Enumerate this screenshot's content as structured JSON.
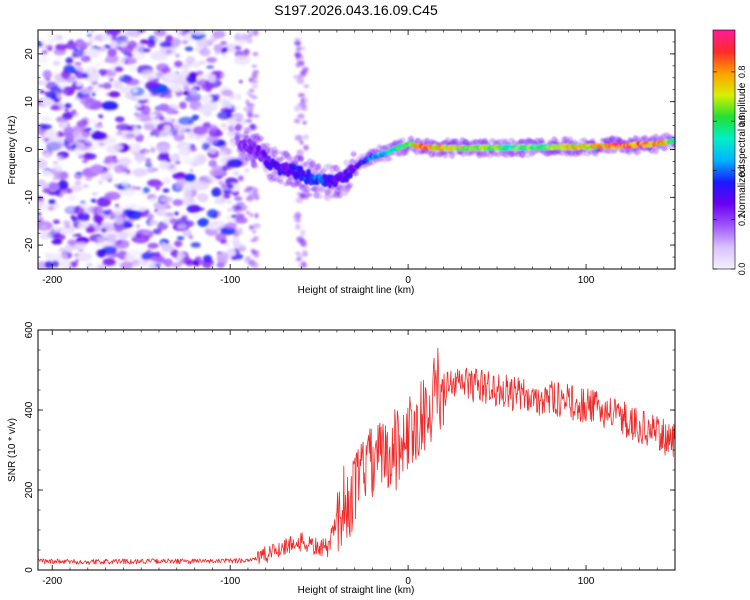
{
  "title": "S197.2026.043.16.09.C45",
  "colors": {
    "snr_line": "#ee2a2a",
    "axis": "#000000",
    "background": "#ffffff"
  },
  "chart_data": [
    {
      "type": "heatmap",
      "name": "spectrogram",
      "xlabel": "Height of straight line (km)",
      "ylabel": "Frequency (Hz)",
      "xlim": [
        -208,
        150
      ],
      "ylim": [
        -25,
        25
      ],
      "x_ticks": [
        -200,
        -100,
        0,
        100
      ],
      "y_ticks": [
        -20,
        -10,
        0,
        10,
        20
      ],
      "colorbar": {
        "label": "Normalized spectral amplitude",
        "range": [
          0,
          0.97
        ],
        "ticks": [
          0.0,
          0.2,
          0.4,
          0.6,
          0.8
        ],
        "tick_labels": [
          "0.0",
          "0.2",
          "0.4",
          "0.6",
          "0.8"
        ],
        "colormap": [
          "#f5f0ff",
          "#d9c2ff",
          "#9f55ff",
          "#6a00f0",
          "#1a1aff",
          "#00b4ff",
          "#00f0c8",
          "#22e030",
          "#d8f000",
          "#ffa000",
          "#ff2a2a",
          "#ff1a9a"
        ]
      },
      "noise_region": {
        "x_range": [
          -208,
          -93
        ],
        "amplitude_range": [
          0.0,
          0.12
        ]
      },
      "signal_ridge": {
        "height_km": [
          -96,
          -90,
          -85,
          -80,
          -75,
          -70,
          -65,
          -60,
          -55,
          -50,
          -45,
          -40,
          -35,
          -30,
          -25,
          -20,
          -15,
          -10,
          -5,
          0,
          5,
          10,
          20,
          40,
          60,
          80,
          100,
          120,
          140,
          150
        ],
        "frequency_hz": [
          1.5,
          1.0,
          -0.5,
          -2.0,
          -3.5,
          -4.0,
          -4.5,
          -5.0,
          -6.0,
          -6.5,
          -7.0,
          -6.5,
          -5.5,
          -4.0,
          -2.5,
          -1.5,
          -1.0,
          -0.5,
          0.5,
          1.0,
          0.8,
          0.5,
          0.3,
          0.3,
          0.4,
          0.5,
          0.6,
          0.8,
          1.2,
          1.8
        ],
        "amplitude": [
          0.2,
          0.25,
          0.25,
          0.28,
          0.35,
          0.3,
          0.32,
          0.35,
          0.38,
          0.4,
          0.35,
          0.3,
          0.3,
          0.28,
          0.35,
          0.45,
          0.5,
          0.55,
          0.6,
          0.7,
          0.8,
          0.85,
          0.75,
          0.7,
          0.65,
          0.7,
          0.8,
          0.9,
          0.85,
          0.6
        ]
      }
    },
    {
      "type": "line",
      "name": "snr",
      "xlabel": "Height of straight line (km)",
      "ylabel": "SNR (10 * v/v)",
      "xlim": [
        -208,
        150
      ],
      "ylim": [
        0,
        600
      ],
      "x_ticks": [
        -200,
        -100,
        0,
        100
      ],
      "y_ticks": [
        0,
        200,
        400,
        600
      ],
      "series": [
        {
          "name": "SNR",
          "x": [
            -208,
            -180,
            -150,
            -120,
            -100,
            -90,
            -80,
            -70,
            -60,
            -50,
            -45,
            -40,
            -35,
            -30,
            -25,
            -20,
            -15,
            -10,
            -5,
            0,
            5,
            10,
            20,
            30,
            40,
            50,
            60,
            70,
            80,
            90,
            100,
            110,
            120,
            130,
            140,
            150
          ],
          "y": [
            22,
            20,
            22,
            22,
            22,
            25,
            35,
            60,
            70,
            55,
            55,
            130,
            140,
            200,
            260,
            270,
            280,
            300,
            320,
            340,
            360,
            400,
            450,
            470,
            460,
            450,
            440,
            430,
            430,
            420,
            410,
            400,
            380,
            360,
            340,
            320
          ]
        }
      ]
    }
  ]
}
